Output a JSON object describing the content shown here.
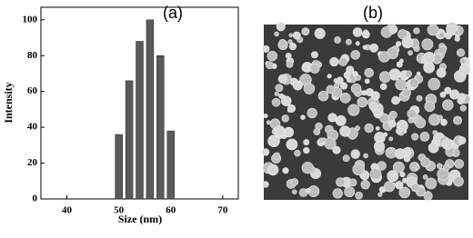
{
  "chart_data": {
    "type": "bar",
    "x": [
      50,
      52,
      54,
      56,
      58,
      60
    ],
    "values": [
      36,
      66,
      88,
      100,
      80,
      38
    ],
    "color": "#5a5a5a",
    "xlabel": "Size (nm)",
    "ylabel": "Intensity",
    "xlim": [
      35,
      73
    ],
    "xticks": [
      40,
      50,
      60,
      70
    ],
    "ylim": [
      0,
      107
    ],
    "yticks": [
      0,
      20,
      40,
      60,
      80,
      100
    ],
    "annotations": [
      "(a)",
      "(b)"
    ]
  }
}
